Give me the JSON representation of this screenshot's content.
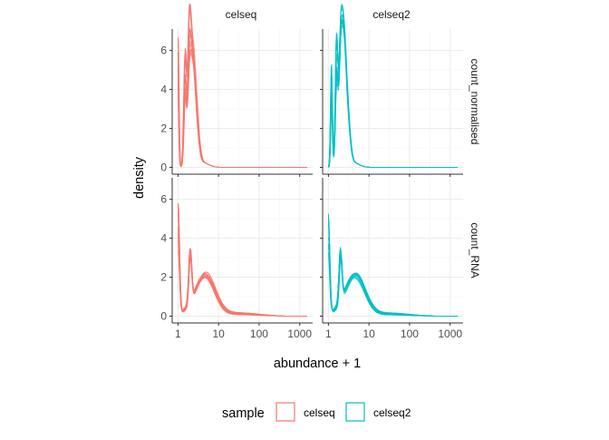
{
  "chart_data": {
    "type": "line",
    "subtype": "faceted density",
    "xlabel": "abundance + 1",
    "ylabel": "density",
    "x_scale": "log10",
    "x_range": [
      1,
      1500
    ],
    "x_ticks": [
      1,
      10,
      100,
      1000
    ],
    "x_tick_labels": [
      "1",
      "10",
      "100",
      "1000"
    ],
    "y_range": [
      0,
      7
    ],
    "y_ticks": [
      0,
      2,
      4,
      6
    ],
    "y_tick_labels": [
      "0",
      "2",
      "4",
      "6"
    ],
    "grid": true,
    "legend": {
      "title": "sample",
      "position": "bottom",
      "entries": [
        {
          "label": "celseq",
          "color": "#F8766D"
        },
        {
          "label": "celseq2",
          "color": "#00BFC4"
        }
      ]
    },
    "facet_columns": [
      "celseq",
      "celseq2"
    ],
    "facet_rows": [
      "count_normalised",
      "count_RNA"
    ],
    "panels": [
      {
        "column": "celseq",
        "row": "count_normalised",
        "color": "#F8766D",
        "peaks": [
          {
            "x": 1.0,
            "y": 6.7
          },
          {
            "x": 1.5,
            "y": 5.6
          },
          {
            "x": 1.9,
            "y": 6.2
          },
          {
            "x": 2.3,
            "y": 3.2
          },
          {
            "x": 2.8,
            "y": 1.5
          }
        ],
        "tail_end_x": 10
      },
      {
        "column": "celseq2",
        "row": "count_normalised",
        "color": "#00BFC4",
        "peaks": [
          {
            "x": 1.2,
            "y": 5.3
          },
          {
            "x": 1.6,
            "y": 6.2
          },
          {
            "x": 2.0,
            "y": 4.4
          },
          {
            "x": 2.4,
            "y": 4.5
          },
          {
            "x": 3.0,
            "y": 1.8
          }
        ],
        "tail_end_x": 10
      },
      {
        "column": "celseq",
        "row": "count_RNA",
        "color": "#F8766D",
        "peaks": [
          {
            "x": 1.0,
            "y": 5.8
          },
          {
            "x": 2.0,
            "y": 2.7
          },
          {
            "x": 5.0,
            "y": 1.2
          }
        ],
        "tail_end_x": 300
      },
      {
        "column": "celseq2",
        "row": "count_RNA",
        "color": "#00BFC4",
        "peaks": [
          {
            "x": 1.0,
            "y": 5.2
          },
          {
            "x": 2.0,
            "y": 2.6
          },
          {
            "x": 5.0,
            "y": 1.2
          }
        ],
        "tail_end_x": 300
      }
    ]
  }
}
